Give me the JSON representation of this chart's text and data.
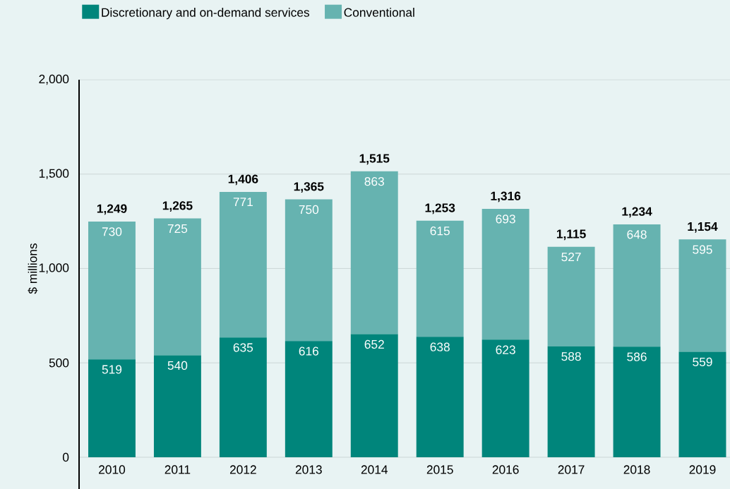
{
  "chart_data": {
    "type": "bar",
    "stacked": true,
    "ylabel": "$ millions",
    "categories": [
      "2010",
      "2011",
      "2012",
      "2013",
      "2014",
      "2015",
      "2016",
      "2017",
      "2018",
      "2019"
    ],
    "series": [
      {
        "name": "Discretionary and on-demand services",
        "color": "#00857b",
        "values": [
          519,
          540,
          635,
          616,
          652,
          638,
          623,
          588,
          586,
          559
        ],
        "value_labels": [
          "519",
          "540",
          "635",
          "616",
          "652",
          "638",
          "623",
          "588",
          "586",
          "559"
        ]
      },
      {
        "name": "Conventional",
        "color": "#66b3b0",
        "values": [
          730,
          725,
          771,
          750,
          863,
          615,
          693,
          527,
          648,
          595
        ],
        "value_labels": [
          "730",
          "725",
          "771",
          "750",
          "863",
          "615",
          "693",
          "527",
          "648",
          "595"
        ]
      }
    ],
    "totals": [
      "1,249",
      "1,265",
      "1,406",
      "1,365",
      "1,515",
      "1,253",
      "1,316",
      "1,115",
      "1,234",
      "1,154"
    ],
    "ylim": [
      0,
      2000
    ],
    "yticks": [
      0,
      {
        "value": 500,
        "label": "500"
      },
      {
        "value": 1000,
        "label": "1,000"
      },
      {
        "value": 1500,
        "label": "1,500"
      },
      {
        "value": 2000,
        "label": "2,000"
      }
    ],
    "grid": "y",
    "legend": "top left"
  }
}
